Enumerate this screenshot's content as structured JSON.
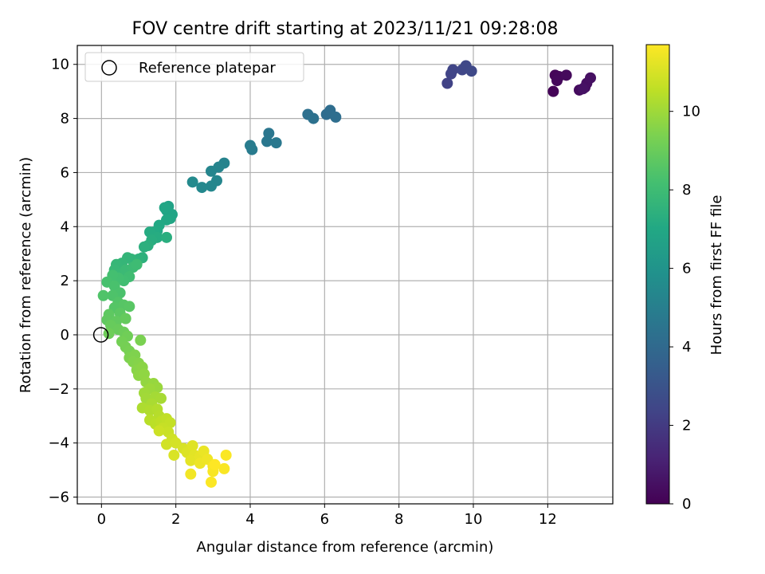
{
  "chart_data": {
    "type": "scatter",
    "title": "FOV centre drift starting at 2023/11/21 09:28:08",
    "xlabel": "Angular distance from reference (arcmin)",
    "ylabel": "Rotation from reference (arcmin)",
    "xlim": [
      -0.65,
      13.75
    ],
    "ylim": [
      -6.25,
      10.7
    ],
    "x_ticks": [
      0,
      2,
      4,
      6,
      8,
      10,
      12
    ],
    "y_ticks": [
      -6,
      -4,
      -2,
      0,
      2,
      4,
      6,
      8,
      10
    ],
    "grid": true,
    "legend": {
      "position": "top-left",
      "entries": [
        "Reference platepar"
      ]
    },
    "reference_point": {
      "x": 0,
      "y": 0,
      "label": "Reference platepar"
    },
    "colorbar": {
      "label": "Hours from first FF file",
      "colormap": "viridis",
      "range": [
        0,
        11.7
      ],
      "ticks": [
        0,
        2,
        4,
        6,
        8,
        10
      ]
    },
    "series": [
      {
        "color_by": "hours",
        "points": [
          {
            "x": 12.15,
            "y": 9.0,
            "h": 0.1
          },
          {
            "x": 12.2,
            "y": 9.6,
            "h": 0.15
          },
          {
            "x": 12.3,
            "y": 9.55,
            "h": 0.2
          },
          {
            "x": 12.25,
            "y": 9.4,
            "h": 0.25
          },
          {
            "x": 12.5,
            "y": 9.6,
            "h": 0.3
          },
          {
            "x": 12.85,
            "y": 9.05,
            "h": 0.35
          },
          {
            "x": 13.0,
            "y": 9.15,
            "h": 0.4
          },
          {
            "x": 13.05,
            "y": 9.3,
            "h": 0.45
          },
          {
            "x": 13.15,
            "y": 9.5,
            "h": 0.5
          },
          {
            "x": 12.95,
            "y": 9.1,
            "h": 0.55
          },
          {
            "x": 9.3,
            "y": 9.3,
            "h": 2.3
          },
          {
            "x": 9.4,
            "y": 9.65,
            "h": 2.35
          },
          {
            "x": 9.45,
            "y": 9.8,
            "h": 2.4
          },
          {
            "x": 9.7,
            "y": 9.8,
            "h": 2.45
          },
          {
            "x": 9.8,
            "y": 9.95,
            "h": 2.5
          },
          {
            "x": 9.95,
            "y": 9.75,
            "h": 2.55
          },
          {
            "x": 6.05,
            "y": 8.15,
            "h": 4.1
          },
          {
            "x": 6.15,
            "y": 8.3,
            "h": 4.15
          },
          {
            "x": 6.3,
            "y": 8.05,
            "h": 4.2
          },
          {
            "x": 5.55,
            "y": 8.15,
            "h": 4.3
          },
          {
            "x": 5.7,
            "y": 8.0,
            "h": 4.35
          },
          {
            "x": 4.5,
            "y": 7.45,
            "h": 4.6
          },
          {
            "x": 4.45,
            "y": 7.15,
            "h": 4.65
          },
          {
            "x": 4.7,
            "y": 7.1,
            "h": 4.7
          },
          {
            "x": 4.05,
            "y": 6.85,
            "h": 4.8
          },
          {
            "x": 4.0,
            "y": 7.0,
            "h": 4.85
          },
          {
            "x": 3.3,
            "y": 6.35,
            "h": 5.2
          },
          {
            "x": 3.15,
            "y": 6.2,
            "h": 5.25
          },
          {
            "x": 2.95,
            "y": 6.05,
            "h": 5.3
          },
          {
            "x": 3.1,
            "y": 5.7,
            "h": 5.35
          },
          {
            "x": 2.95,
            "y": 5.5,
            "h": 5.4
          },
          {
            "x": 2.7,
            "y": 5.45,
            "h": 5.45
          },
          {
            "x": 2.45,
            "y": 5.65,
            "h": 5.5
          },
          {
            "x": 1.8,
            "y": 4.75,
            "h": 6.7
          },
          {
            "x": 1.75,
            "y": 4.6,
            "h": 6.75
          },
          {
            "x": 1.9,
            "y": 4.45,
            "h": 6.8
          },
          {
            "x": 1.85,
            "y": 4.3,
            "h": 6.85
          },
          {
            "x": 1.7,
            "y": 4.7,
            "h": 6.9
          },
          {
            "x": 1.75,
            "y": 4.25,
            "h": 6.95
          },
          {
            "x": 1.55,
            "y": 4.05,
            "h": 7.0
          },
          {
            "x": 1.5,
            "y": 3.85,
            "h": 7.05
          },
          {
            "x": 1.4,
            "y": 3.8,
            "h": 7.1
          },
          {
            "x": 1.3,
            "y": 3.8,
            "h": 7.15
          },
          {
            "x": 1.5,
            "y": 3.6,
            "h": 7.2
          },
          {
            "x": 1.35,
            "y": 3.5,
            "h": 7.25
          },
          {
            "x": 1.75,
            "y": 3.6,
            "h": 7.3
          },
          {
            "x": 1.25,
            "y": 3.3,
            "h": 7.35
          },
          {
            "x": 1.15,
            "y": 3.25,
            "h": 7.4
          },
          {
            "x": 1.1,
            "y": 2.85,
            "h": 7.45
          },
          {
            "x": 1.0,
            "y": 2.8,
            "h": 7.5
          },
          {
            "x": 0.9,
            "y": 2.75,
            "h": 7.55
          },
          {
            "x": 0.8,
            "y": 2.8,
            "h": 7.6
          },
          {
            "x": 0.7,
            "y": 2.85,
            "h": 7.65
          },
          {
            "x": 0.55,
            "y": 2.65,
            "h": 7.7
          },
          {
            "x": 0.4,
            "y": 2.6,
            "h": 7.75
          },
          {
            "x": 0.35,
            "y": 2.4,
            "h": 7.8
          },
          {
            "x": 0.5,
            "y": 2.25,
            "h": 7.85
          },
          {
            "x": 0.65,
            "y": 2.4,
            "h": 7.9
          },
          {
            "x": 0.85,
            "y": 2.5,
            "h": 7.95
          },
          {
            "x": 0.95,
            "y": 2.6,
            "h": 8.0
          },
          {
            "x": 0.75,
            "y": 2.15,
            "h": 8.05
          },
          {
            "x": 0.6,
            "y": 2.0,
            "h": 8.1
          },
          {
            "x": 0.45,
            "y": 2.1,
            "h": 8.15
          },
          {
            "x": 0.3,
            "y": 2.2,
            "h": 8.2
          },
          {
            "x": 0.15,
            "y": 1.95,
            "h": 8.25
          },
          {
            "x": 0.35,
            "y": 1.8,
            "h": 8.3
          },
          {
            "x": 0.5,
            "y": 1.55,
            "h": 8.35
          },
          {
            "x": 0.3,
            "y": 1.45,
            "h": 8.4
          },
          {
            "x": 0.05,
            "y": 1.45,
            "h": 8.45
          },
          {
            "x": 0.45,
            "y": 1.2,
            "h": 8.5
          },
          {
            "x": 0.35,
            "y": 1.0,
            "h": 8.55
          },
          {
            "x": 0.6,
            "y": 1.1,
            "h": 8.6
          },
          {
            "x": 0.75,
            "y": 1.05,
            "h": 8.65
          },
          {
            "x": 0.5,
            "y": 0.8,
            "h": 8.7
          },
          {
            "x": 0.2,
            "y": 0.75,
            "h": 8.75
          },
          {
            "x": 0.15,
            "y": 0.55,
            "h": 8.8
          },
          {
            "x": 0.4,
            "y": 0.5,
            "h": 8.85
          },
          {
            "x": 0.65,
            "y": 0.6,
            "h": 8.9
          },
          {
            "x": 0.25,
            "y": 0.35,
            "h": 8.95
          },
          {
            "x": 0.45,
            "y": 0.2,
            "h": 9.0
          },
          {
            "x": 0.6,
            "y": 0.1,
            "h": 9.05
          },
          {
            "x": 0.2,
            "y": 0.05,
            "h": 9.1
          },
          {
            "x": 0.7,
            "y": -0.05,
            "h": 9.15
          },
          {
            "x": 0.55,
            "y": -0.25,
            "h": 9.2
          },
          {
            "x": 0.65,
            "y": -0.45,
            "h": 9.25
          },
          {
            "x": 0.75,
            "y": -0.6,
            "h": 9.3
          },
          {
            "x": 1.05,
            "y": -0.2,
            "h": 9.35
          },
          {
            "x": 0.75,
            "y": -0.85,
            "h": 9.4
          },
          {
            "x": 0.9,
            "y": -0.75,
            "h": 9.45
          },
          {
            "x": 0.85,
            "y": -1.0,
            "h": 9.5
          },
          {
            "x": 1.0,
            "y": -1.05,
            "h": 9.55
          },
          {
            "x": 0.95,
            "y": -1.3,
            "h": 9.6
          },
          {
            "x": 1.1,
            "y": -1.2,
            "h": 9.65
          },
          {
            "x": 1.0,
            "y": -1.5,
            "h": 9.7
          },
          {
            "x": 1.15,
            "y": -1.45,
            "h": 9.75
          },
          {
            "x": 1.2,
            "y": -1.75,
            "h": 9.8
          },
          {
            "x": 1.4,
            "y": -1.8,
            "h": 9.85
          },
          {
            "x": 1.5,
            "y": -1.95,
            "h": 9.9
          },
          {
            "x": 1.3,
            "y": -2.0,
            "h": 9.95
          },
          {
            "x": 1.15,
            "y": -2.15,
            "h": 10.0
          },
          {
            "x": 1.2,
            "y": -2.35,
            "h": 10.05
          },
          {
            "x": 1.45,
            "y": -2.3,
            "h": 10.1
          },
          {
            "x": 1.6,
            "y": -2.35,
            "h": 10.15
          },
          {
            "x": 1.35,
            "y": -2.55,
            "h": 10.2
          },
          {
            "x": 1.1,
            "y": -2.7,
            "h": 10.25
          },
          {
            "x": 1.3,
            "y": -2.8,
            "h": 10.3
          },
          {
            "x": 1.5,
            "y": -2.75,
            "h": 10.35
          },
          {
            "x": 1.55,
            "y": -3.0,
            "h": 10.4
          },
          {
            "x": 1.3,
            "y": -3.15,
            "h": 10.45
          },
          {
            "x": 1.45,
            "y": -3.3,
            "h": 10.5
          },
          {
            "x": 1.6,
            "y": -3.2,
            "h": 10.55
          },
          {
            "x": 1.75,
            "y": -3.1,
            "h": 10.6
          },
          {
            "x": 1.85,
            "y": -3.25,
            "h": 10.65
          },
          {
            "x": 1.65,
            "y": -3.45,
            "h": 10.7
          },
          {
            "x": 1.8,
            "y": -3.6,
            "h": 10.75
          },
          {
            "x": 1.55,
            "y": -3.55,
            "h": 10.8
          },
          {
            "x": 1.9,
            "y": -3.85,
            "h": 10.85
          },
          {
            "x": 1.75,
            "y": -4.05,
            "h": 10.9
          },
          {
            "x": 2.0,
            "y": -4.0,
            "h": 10.95
          },
          {
            "x": 2.2,
            "y": -4.2,
            "h": 11.0
          },
          {
            "x": 1.95,
            "y": -4.45,
            "h": 11.05
          },
          {
            "x": 2.3,
            "y": -4.35,
            "h": 11.1
          },
          {
            "x": 2.45,
            "y": -4.1,
            "h": 11.15
          },
          {
            "x": 2.5,
            "y": -4.45,
            "h": 11.2
          },
          {
            "x": 2.4,
            "y": -4.65,
            "h": 11.25
          },
          {
            "x": 2.65,
            "y": -4.5,
            "h": 11.3
          },
          {
            "x": 2.75,
            "y": -4.3,
            "h": 11.35
          },
          {
            "x": 2.65,
            "y": -4.75,
            "h": 11.4
          },
          {
            "x": 2.85,
            "y": -4.6,
            "h": 11.45
          },
          {
            "x": 2.4,
            "y": -5.15,
            "h": 11.5
          },
          {
            "x": 3.0,
            "y": -4.85,
            "h": 11.55
          },
          {
            "x": 3.0,
            "y": -5.05,
            "h": 11.6
          },
          {
            "x": 3.3,
            "y": -4.95,
            "h": 11.62
          },
          {
            "x": 3.35,
            "y": -4.45,
            "h": 11.65
          },
          {
            "x": 2.95,
            "y": -5.45,
            "h": 11.67
          },
          {
            "x": 3.05,
            "y": -4.8,
            "h": 11.7
          }
        ]
      }
    ]
  }
}
